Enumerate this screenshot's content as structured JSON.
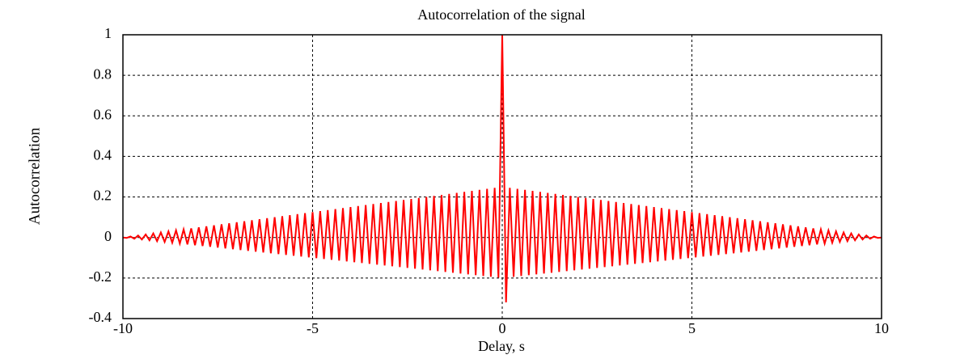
{
  "chart_data": {
    "type": "line",
    "title": "Autocorrelation of the signal",
    "xlabel": "Delay, s",
    "ylabel": "Autocorrelation",
    "color": "#ff0000",
    "grid": true,
    "xlim": [
      -10,
      10
    ],
    "xticks": [
      -10,
      -5,
      0,
      5,
      10
    ],
    "ylim": [
      -0.4,
      1
    ],
    "yticks": [
      -0.4,
      -0.2,
      0,
      0.2,
      0.4,
      0.6,
      0.8,
      1
    ],
    "x": [
      -10,
      -9.9,
      -9.8,
      -9.7,
      -9.6,
      -9.5,
      -9.4,
      -9.3,
      -9.2,
      -9.1,
      -9,
      -8.9,
      -8.8,
      -8.7,
      -8.6,
      -8.5,
      -8.4,
      -8.3,
      -8.2,
      -8.1,
      -8,
      -7.9,
      -7.8,
      -7.7,
      -7.6,
      -7.5,
      -7.4,
      -7.3,
      -7.2,
      -7.1,
      -7,
      -6.9,
      -6.8,
      -6.7,
      -6.6,
      -6.5,
      -6.4,
      -6.3,
      -6.2,
      -6.1,
      -6,
      -5.9,
      -5.8,
      -5.7,
      -5.6,
      -5.5,
      -5.4,
      -5.3,
      -5.2,
      -5.1,
      -5,
      -4.9,
      -4.8,
      -4.7,
      -4.6,
      -4.5,
      -4.4,
      -4.3,
      -4.2,
      -4.1,
      -4,
      -3.9,
      -3.8,
      -3.7,
      -3.6,
      -3.5,
      -3.4,
      -3.3,
      -3.2,
      -3.1,
      -3,
      -2.9,
      -2.8,
      -2.7,
      -2.6,
      -2.5,
      -2.4,
      -2.3,
      -2.2,
      -2.1,
      -2,
      -1.9,
      -1.8,
      -1.7,
      -1.6,
      -1.5,
      -1.4,
      -1.3,
      -1.2,
      -1.1,
      -1,
      -0.9,
      -0.8,
      -0.7,
      -0.6,
      -0.5,
      -0.4,
      -0.3,
      -0.2,
      -0.1,
      0,
      0.1,
      0.2,
      0.3,
      0.4,
      0.5,
      0.6,
      0.7,
      0.8,
      0.9,
      1,
      1.1,
      1.2,
      1.3,
      1.4,
      1.5,
      1.6,
      1.7,
      1.8,
      1.9,
      2,
      2.1,
      2.2,
      2.3,
      2.4,
      2.5,
      2.6,
      2.7,
      2.8,
      2.9,
      3,
      3.1,
      3.2,
      3.3,
      3.4,
      3.5,
      3.6,
      3.7,
      3.8,
      3.9,
      4,
      4.1,
      4.2,
      4.3,
      4.4,
      4.5,
      4.6,
      4.7,
      4.8,
      4.9,
      5,
      5.1,
      5.2,
      5.3,
      5.4,
      5.5,
      5.6,
      5.7,
      5.8,
      5.9,
      6,
      6.1,
      6.2,
      6.3,
      6.4,
      6.5,
      6.6,
      6.7,
      6.8,
      6.9,
      7,
      7.1,
      7.2,
      7.3,
      7.4,
      7.5,
      7.6,
      7.7,
      7.8,
      7.9,
      8,
      8.1,
      8.2,
      8.3,
      8.4,
      8.5,
      8.6,
      8.7,
      8.8,
      8.9,
      9,
      9.1,
      9.2,
      9.3,
      9.4,
      9.5,
      9.6,
      9.7,
      9.8,
      9.9,
      10
    ],
    "values": [
      0,
      -0.002,
      0.005,
      -0.006,
      0.01,
      -0.01,
      0.015,
      -0.014,
      0.02,
      -0.018,
      0.025,
      -0.022,
      0.03,
      -0.026,
      0.035,
      -0.03,
      0.04,
      -0.034,
      0.045,
      -0.038,
      0.05,
      -0.042,
      0.055,
      -0.046,
      0.06,
      -0.05,
      0.065,
      -0.054,
      0.07,
      -0.058,
      0.075,
      -0.062,
      0.08,
      -0.066,
      0.085,
      -0.07,
      0.09,
      -0.074,
      0.095,
      -0.078,
      0.1,
      -0.082,
      0.105,
      -0.086,
      0.11,
      -0.09,
      0.115,
      -0.094,
      0.12,
      -0.098,
      0.125,
      -0.102,
      0.13,
      -0.106,
      0.135,
      -0.11,
      0.14,
      -0.114,
      0.145,
      -0.118,
      0.15,
      -0.122,
      0.155,
      -0.126,
      0.16,
      -0.13,
      0.165,
      -0.134,
      0.17,
      -0.138,
      0.175,
      -0.142,
      0.18,
      -0.146,
      0.185,
      -0.15,
      0.19,
      -0.154,
      0.195,
      -0.158,
      0.2,
      -0.162,
      0.205,
      -0.166,
      0.21,
      -0.17,
      0.215,
      -0.174,
      0.22,
      -0.178,
      0.225,
      -0.182,
      0.23,
      -0.186,
      0.235,
      -0.19,
      0.24,
      -0.194,
      0.245,
      -0.198,
      1,
      -0.32,
      0.245,
      -0.194,
      0.24,
      -0.19,
      0.235,
      -0.186,
      0.23,
      -0.182,
      0.225,
      -0.178,
      0.22,
      -0.174,
      0.215,
      -0.17,
      0.21,
      -0.166,
      0.205,
      -0.162,
      0.2,
      -0.158,
      0.195,
      -0.154,
      0.19,
      -0.15,
      0.185,
      -0.146,
      0.18,
      -0.142,
      0.175,
      -0.138,
      0.17,
      -0.134,
      0.165,
      -0.13,
      0.16,
      -0.126,
      0.155,
      -0.122,
      0.15,
      -0.118,
      0.145,
      -0.114,
      0.14,
      -0.11,
      0.135,
      -0.106,
      0.13,
      -0.102,
      0.125,
      -0.098,
      0.12,
      -0.094,
      0.115,
      -0.09,
      0.11,
      -0.086,
      0.105,
      -0.082,
      0.1,
      -0.078,
      0.095,
      -0.074,
      0.09,
      -0.07,
      0.085,
      -0.066,
      0.08,
      -0.062,
      0.075,
      -0.058,
      0.07,
      -0.054,
      0.065,
      -0.05,
      0.06,
      -0.046,
      0.055,
      -0.042,
      0.05,
      -0.038,
      0.045,
      -0.034,
      0.04,
      -0.03,
      0.035,
      -0.026,
      0.03,
      -0.022,
      0.025,
      -0.018,
      0.02,
      -0.014,
      0.015,
      -0.01,
      0.01,
      -0.006,
      0.005,
      -0.002,
      0
    ]
  }
}
